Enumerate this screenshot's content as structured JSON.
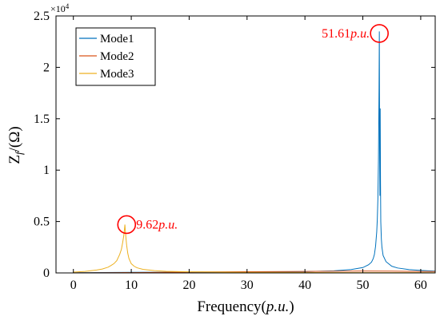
{
  "chart_data": {
    "type": "line",
    "xlabel": "Frequency(p.u.)",
    "ylabel": "Z_f/(Ω)",
    "y_multiplier_label": "×10^4",
    "xlim": [
      -3,
      62.5
    ],
    "ylim": [
      0,
      25000
    ],
    "x_ticks": [
      0,
      10,
      20,
      30,
      40,
      50,
      60
    ],
    "x_tick_labels": [
      "0",
      "10",
      "20",
      "30",
      "40",
      "50",
      "60"
    ],
    "y_ticks": [
      0,
      5000,
      10000,
      15000,
      20000,
      25000
    ],
    "y_tick_labels": [
      "0",
      "0.5",
      "1",
      "1.5",
      "2",
      "2.5"
    ],
    "legend_position": "top-left",
    "series": [
      {
        "name": "Mode1",
        "color": "#0072BD",
        "x": [
          0,
          10,
          20,
          30,
          40,
          45,
          48,
          50,
          51,
          51.5,
          51.8,
          52.0,
          52.2,
          52.4,
          52.5,
          52.6,
          52.7,
          52.75,
          52.8,
          52.85,
          52.9,
          52.95,
          53.0,
          53.05,
          53.1,
          53.2,
          53.3,
          53.5,
          54,
          55,
          56,
          58,
          60,
          62.5
        ],
        "values": [
          20,
          60,
          80,
          90,
          130,
          200,
          330,
          520,
          800,
          1050,
          1400,
          1800,
          2600,
          4000,
          5200,
          7200,
          11000,
          14500,
          18000,
          23500,
          12000,
          7500,
          16000,
          9000,
          5000,
          3300,
          2500,
          1700,
          1100,
          650,
          480,
          320,
          240,
          170
        ]
      },
      {
        "name": "Mode2",
        "color": "#D95319",
        "x": [
          0,
          5,
          8,
          9,
          10,
          15,
          20,
          30,
          40,
          50,
          55,
          60,
          62.5
        ],
        "values": [
          10,
          20,
          30,
          40,
          30,
          60,
          90,
          120,
          150,
          180,
          170,
          150,
          140
        ]
      },
      {
        "name": "Mode3",
        "color": "#EDB120",
        "x": [
          0,
          2,
          4,
          5,
          6,
          6.5,
          7,
          7.5,
          8,
          8.3,
          8.5,
          8.7,
          8.8,
          8.9,
          9.0,
          9.1,
          9.2,
          9.4,
          9.6,
          10,
          10.5,
          11,
          12,
          14,
          16,
          20,
          30,
          40,
          50,
          60,
          62.5
        ],
        "values": [
          80,
          150,
          280,
          380,
          560,
          720,
          900,
          1200,
          1800,
          2300,
          2900,
          3600,
          4100,
          4700,
          3900,
          3300,
          2700,
          1900,
          1400,
          900,
          650,
          500,
          350,
          220,
          160,
          110,
          60,
          40,
          30,
          25,
          20
        ]
      }
    ],
    "annotations": [
      {
        "label": "9.62",
        "unit": "p.u.",
        "x": 9.2,
        "y": 4700,
        "color": "#FF0000",
        "text_side": "right"
      },
      {
        "label": "51.61",
        "unit": "p.u.",
        "x": 52.85,
        "y": 23300,
        "color": "#FF0000",
        "text_side": "left"
      }
    ]
  }
}
